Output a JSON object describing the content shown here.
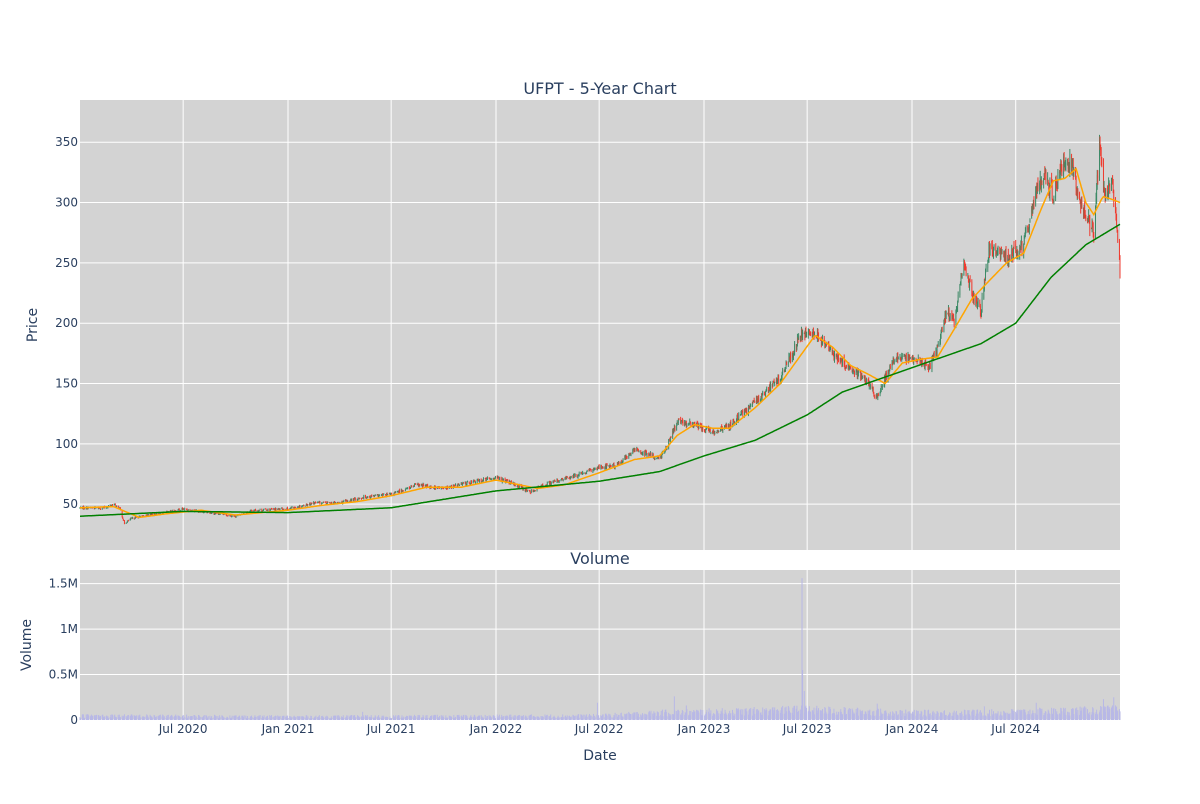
{
  "chart_data": [
    {
      "type": "candlestick",
      "title": "UFPT - 5-Year Chart",
      "ylabel": "Price",
      "ylim": [
        12,
        385
      ],
      "xlim": [
        "2020-01-02",
        "2024-12-31"
      ],
      "yticks": [
        50,
        100,
        150,
        200,
        250,
        300,
        350
      ],
      "xticks": [
        "2020-07-01",
        "2021-01-01",
        "2021-07-01",
        "2022-01-01",
        "2022-07-01",
        "2023-01-01",
        "2023-07-01",
        "2024-01-01",
        "2024-07-01"
      ],
      "grid": true,
      "price_anchors": [
        [
          "2020-01-02",
          47
        ],
        [
          "2020-02-15",
          47
        ],
        [
          "2020-03-01",
          50
        ],
        [
          "2020-03-12",
          46
        ],
        [
          "2020-03-20",
          34
        ],
        [
          "2020-04-01",
          38
        ],
        [
          "2020-05-01",
          41
        ],
        [
          "2020-06-01",
          43
        ],
        [
          "2020-07-01",
          46
        ],
        [
          "2020-08-01",
          44
        ],
        [
          "2020-09-01",
          42
        ],
        [
          "2020-10-01",
          40
        ],
        [
          "2020-11-01",
          45
        ],
        [
          "2021-01-01",
          46
        ],
        [
          "2021-02-15",
          51
        ],
        [
          "2021-04-01",
          51
        ],
        [
          "2021-05-15",
          56
        ],
        [
          "2021-07-01",
          58
        ],
        [
          "2021-08-15",
          66
        ],
        [
          "2021-10-01",
          63
        ],
        [
          "2021-11-15",
          68
        ],
        [
          "2022-01-01",
          72
        ],
        [
          "2022-02-15",
          64
        ],
        [
          "2022-03-01",
          60
        ],
        [
          "2022-04-01",
          67
        ],
        [
          "2022-06-01",
          75
        ],
        [
          "2022-07-01",
          81
        ],
        [
          "2022-08-01",
          82
        ],
        [
          "2022-09-01",
          95
        ],
        [
          "2022-10-15",
          88
        ],
        [
          "2022-11-01",
          102
        ],
        [
          "2022-11-15",
          118
        ],
        [
          "2022-12-15",
          116
        ],
        [
          "2023-01-15",
          110
        ],
        [
          "2023-02-15",
          115
        ],
        [
          "2023-04-01",
          135
        ],
        [
          "2023-05-15",
          155
        ],
        [
          "2023-06-20",
          190
        ],
        [
          "2023-07-15",
          192
        ],
        [
          "2023-08-15",
          175
        ],
        [
          "2023-09-15",
          162
        ],
        [
          "2023-10-15",
          152
        ],
        [
          "2023-11-01",
          138
        ],
        [
          "2023-12-01",
          172
        ],
        [
          "2024-01-01",
          170
        ],
        [
          "2024-02-01",
          165
        ],
        [
          "2024-02-15",
          180
        ],
        [
          "2024-03-01",
          210
        ],
        [
          "2024-03-15",
          200
        ],
        [
          "2024-04-01",
          250
        ],
        [
          "2024-04-15",
          225
        ],
        [
          "2024-05-01",
          210
        ],
        [
          "2024-05-15",
          260
        ],
        [
          "2024-06-15",
          255
        ],
        [
          "2024-07-15",
          265
        ],
        [
          "2024-08-01",
          300
        ],
        [
          "2024-08-20",
          325
        ],
        [
          "2024-09-05",
          305
        ],
        [
          "2024-09-20",
          330
        ],
        [
          "2024-10-05",
          335
        ],
        [
          "2024-10-20",
          305
        ],
        [
          "2024-11-01",
          290
        ],
        [
          "2024-11-15",
          275
        ],
        [
          "2024-11-25",
          350
        ],
        [
          "2024-12-05",
          300
        ],
        [
          "2024-12-15",
          320
        ],
        [
          "2024-12-22",
          295
        ],
        [
          "2024-12-31",
          245
        ]
      ],
      "ma_short": [
        [
          "2020-01-02",
          47
        ],
        [
          "2020-03-01",
          48
        ],
        [
          "2020-04-15",
          39
        ],
        [
          "2020-06-01",
          42
        ],
        [
          "2020-08-01",
          45
        ],
        [
          "2020-10-01",
          41
        ],
        [
          "2021-01-01",
          45
        ],
        [
          "2021-03-01",
          49
        ],
        [
          "2021-05-01",
          52
        ],
        [
          "2021-07-01",
          57
        ],
        [
          "2021-09-01",
          64
        ],
        [
          "2021-11-01",
          64
        ],
        [
          "2022-01-01",
          70
        ],
        [
          "2022-03-15",
          63
        ],
        [
          "2022-05-01",
          66
        ],
        [
          "2022-07-01",
          76
        ],
        [
          "2022-09-01",
          87
        ],
        [
          "2022-10-15",
          90
        ],
        [
          "2022-11-15",
          107
        ],
        [
          "2022-12-15",
          116
        ],
        [
          "2023-01-15",
          113
        ],
        [
          "2023-02-15",
          113
        ],
        [
          "2023-04-01",
          130
        ],
        [
          "2023-05-15",
          150
        ],
        [
          "2023-07-15",
          190
        ],
        [
          "2023-08-15",
          180
        ],
        [
          "2023-09-15",
          165
        ],
        [
          "2023-10-15",
          158
        ],
        [
          "2023-11-15",
          150
        ],
        [
          "2023-12-15",
          167
        ],
        [
          "2024-01-15",
          170
        ],
        [
          "2024-02-15",
          172
        ],
        [
          "2024-03-15",
          195
        ],
        [
          "2024-04-15",
          220
        ],
        [
          "2024-05-15",
          235
        ],
        [
          "2024-06-15",
          250
        ],
        [
          "2024-07-15",
          258
        ],
        [
          "2024-08-15",
          295
        ],
        [
          "2024-09-05",
          318
        ],
        [
          "2024-09-25",
          320
        ],
        [
          "2024-10-15",
          328
        ],
        [
          "2024-11-01",
          300
        ],
        [
          "2024-11-15",
          290
        ],
        [
          "2024-12-01",
          305
        ],
        [
          "2024-12-15",
          303
        ],
        [
          "2024-12-31",
          300
        ]
      ],
      "ma_long": [
        [
          "2020-01-02",
          40
        ],
        [
          "2020-07-01",
          44
        ],
        [
          "2021-01-01",
          43
        ],
        [
          "2021-07-01",
          47
        ],
        [
          "2022-01-01",
          61
        ],
        [
          "2022-07-01",
          69
        ],
        [
          "2022-10-15",
          77
        ],
        [
          "2023-01-01",
          90
        ],
        [
          "2023-04-01",
          103
        ],
        [
          "2023-07-01",
          124
        ],
        [
          "2023-09-01",
          143
        ],
        [
          "2023-12-01",
          158
        ],
        [
          "2024-03-01",
          173
        ],
        [
          "2024-05-01",
          183
        ],
        [
          "2024-07-01",
          200
        ],
        [
          "2024-09-01",
          238
        ],
        [
          "2024-11-01",
          265
        ],
        [
          "2024-12-31",
          282
        ]
      ],
      "colors": {
        "up": "#3d8a67",
        "down": "#ef3b2f",
        "ma_short": "#ffa500",
        "ma_long": "#008000"
      }
    },
    {
      "type": "bar",
      "title": "Volume",
      "xlabel": "Date",
      "ylabel": "Volume",
      "ylim": [
        0,
        1650000
      ],
      "yticks": [
        0,
        500000,
        1000000,
        1500000
      ],
      "ytick_labels": [
        "0",
        "0.5M",
        "1M",
        "1.5M"
      ],
      "xticks": [
        "2020-07-01",
        "2021-01-01",
        "2021-07-01",
        "2022-01-01",
        "2022-07-01",
        "2023-01-01",
        "2023-07-01",
        "2024-01-01",
        "2024-07-01"
      ],
      "xtick_labels": [
        "Jul 2020",
        "Jan 2021",
        "Jul 2021",
        "Jan 2022",
        "Jul 2022",
        "Jan 2023",
        "Jul 2023",
        "Jan 2024",
        "Jul 2024"
      ],
      "grid": true,
      "volume_profile": [
        [
          "2020-01-02",
          45000
        ],
        [
          "2021-01-01",
          35000
        ],
        [
          "2022-01-01",
          40000
        ],
        [
          "2022-07-01",
          45000
        ],
        [
          "2022-11-01",
          80000
        ],
        [
          "2023-03-01",
          90000
        ],
        [
          "2023-06-20",
          110000
        ],
        [
          "2024-01-01",
          75000
        ],
        [
          "2024-06-01",
          80000
        ],
        [
          "2024-12-31",
          110000
        ]
      ],
      "volume_spikes": [
        [
          "2021-05-12",
          90000
        ],
        [
          "2022-06-28",
          190000
        ],
        [
          "2022-11-10",
          260000
        ],
        [
          "2022-12-01",
          160000
        ],
        [
          "2023-06-22",
          1560000
        ],
        [
          "2023-06-23",
          550000
        ],
        [
          "2023-06-26",
          320000
        ],
        [
          "2023-11-01",
          180000
        ],
        [
          "2024-05-07",
          150000
        ],
        [
          "2024-08-06",
          190000
        ],
        [
          "2024-12-02",
          230000
        ],
        [
          "2024-12-20",
          250000
        ]
      ],
      "color": "#b8b8e6"
    }
  ]
}
